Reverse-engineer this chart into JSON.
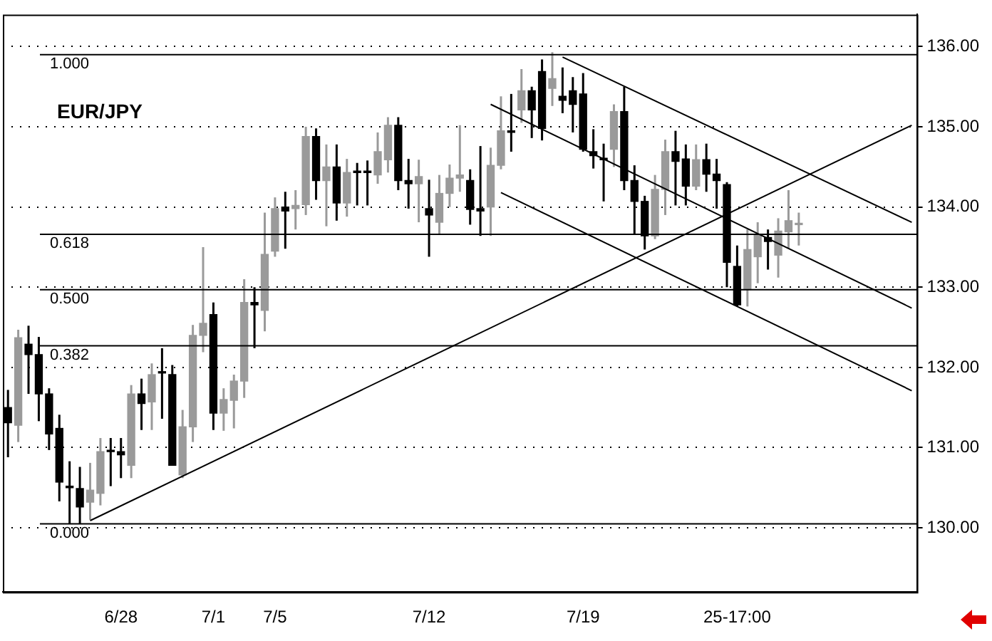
{
  "chart_data": {
    "type": "candlestick",
    "title": "EUR/JPY",
    "colors": [
      "#000000",
      "#9a9a9a",
      "#000000",
      "#000000",
      "#000000",
      "#000000",
      "#000000",
      "#000000",
      "#9a9a9a",
      "#9a9a9a",
      "#000000",
      "#000000",
      "#9a9a9a",
      "#000000",
      "#9a9a9a",
      "#000000",
      "#000000",
      "#9a9a9a",
      "#9a9a9a",
      "#9a9a9a",
      "#000000",
      "#9a9a9a",
      "#9a9a9a",
      "#9a9a9a",
      "#000000",
      "#9a9a9a",
      "#9a9a9a",
      "#000000",
      "#9a9a9a",
      "#9a9a9a",
      "#000000",
      "#9a9a9a",
      "#000000",
      "#9a9a9a",
      "#000000",
      "#000000",
      "#9a9a9a",
      "#9a9a9a",
      "#000000",
      "#000000",
      "#9a9a9a",
      "#000000",
      "#9a9a9a",
      "#9a9a9a",
      "#9a9a9a",
      "#000000",
      "#000000",
      "#9a9a9a",
      "#9a9a9a",
      "#000000",
      "#9a9a9a",
      "#000000",
      "#000000",
      "#9a9a9a",
      "#000000",
      "#000000",
      "#000000",
      "#000000",
      "#000000",
      "#9a9a9a",
      "#000000",
      "#000000",
      "#000000",
      "#9a9a9a",
      "#9a9a9a",
      "#000000",
      "#000000",
      "#9a9a9a",
      "#000000",
      "#000000",
      "#000000",
      "#000000",
      "#9a9a9a",
      "#9a9a9a",
      "#000000",
      "#9a9a9a",
      "#9a9a9a",
      "#9a9a9a",
      null,
      null,
      null,
      null,
      null,
      null,
      null,
      null,
      null,
      null,
      null
    ],
    "categories": [
      null,
      null,
      null,
      null,
      null,
      null,
      null,
      null,
      null,
      null,
      null,
      "6/28",
      null,
      null,
      null,
      null,
      null,
      null,
      null,
      null,
      "7/1",
      null,
      null,
      null,
      null,
      null,
      "7/5",
      null,
      null,
      null,
      null,
      null,
      null,
      null,
      null,
      null,
      null,
      null,
      null,
      null,
      null,
      "7/12",
      null,
      null,
      null,
      null,
      null,
      null,
      null,
      null,
      null,
      null,
      null,
      null,
      null,
      null,
      "7/19",
      null,
      null,
      null,
      null,
      null,
      null,
      null,
      null,
      null,
      null,
      null,
      null,
      null,
      null,
      "25-17:00",
      null,
      null,
      null,
      null,
      null,
      null,
      null,
      null,
      null,
      null,
      null,
      null,
      null,
      null,
      null,
      null,
      null
    ],
    "ohlc": [
      [
        131.5,
        131.72,
        130.88,
        131.31
      ],
      [
        131.28,
        132.47,
        131.07,
        132.37
      ],
      [
        132.29,
        132.52,
        131.67,
        132.16
      ],
      [
        132.16,
        132.38,
        131.33,
        131.67
      ],
      [
        131.67,
        131.74,
        130.97,
        131.17
      ],
      [
        131.24,
        131.41,
        130.33,
        130.57
      ],
      [
        130.52,
        130.83,
        130.05,
        130.5
      ],
      [
        130.49,
        130.76,
        130.05,
        130.26
      ],
      [
        130.32,
        130.81,
        130.1,
        130.47
      ],
      [
        130.43,
        131.12,
        130.28,
        130.95
      ],
      [
        130.95,
        131.12,
        130.52,
        130.95
      ],
      [
        130.95,
        131.12,
        130.62,
        130.91
      ],
      [
        130.78,
        131.78,
        130.62,
        131.67
      ],
      [
        131.67,
        131.86,
        131.22,
        131.55
      ],
      [
        131.57,
        132.05,
        131.22,
        131.91
      ],
      [
        131.93,
        132.24,
        131.36,
        131.93
      ],
      [
        131.91,
        132.03,
        130.78,
        130.78
      ],
      [
        130.66,
        131.47,
        130.62,
        131.26
      ],
      [
        131.26,
        132.53,
        131.07,
        132.4
      ],
      [
        132.4,
        133.5,
        132.19,
        132.55
      ],
      [
        132.66,
        132.81,
        131.22,
        131.43
      ],
      [
        131.43,
        131.74,
        131.21,
        131.6
      ],
      [
        131.59,
        131.91,
        131.24,
        131.83
      ],
      [
        131.83,
        133.1,
        131.62,
        132.81
      ],
      [
        132.81,
        133.0,
        132.24,
        132.78
      ],
      [
        132.71,
        133.93,
        132.45,
        133.41
      ],
      [
        133.45,
        134.12,
        133.38,
        133.98
      ],
      [
        134.0,
        134.19,
        133.48,
        133.95
      ],
      [
        133.98,
        134.21,
        133.72,
        134.02
      ],
      [
        134.03,
        135.0,
        133.9,
        134.88
      ],
      [
        134.88,
        134.98,
        134.09,
        134.33
      ],
      [
        134.33,
        134.78,
        133.76,
        134.5
      ],
      [
        134.5,
        134.78,
        133.83,
        134.05
      ],
      [
        134.05,
        134.6,
        133.88,
        134.43
      ],
      [
        134.43,
        134.55,
        134.02,
        134.43
      ],
      [
        134.43,
        134.58,
        134.02,
        134.43
      ],
      [
        134.4,
        134.93,
        134.29,
        134.69
      ],
      [
        134.59,
        135.12,
        134.43,
        135.02
      ],
      [
        135.02,
        135.12,
        134.21,
        134.33
      ],
      [
        134.33,
        134.6,
        133.98,
        134.29
      ],
      [
        134.29,
        134.59,
        133.81,
        134.38
      ],
      [
        133.98,
        134.34,
        133.38,
        133.9
      ],
      [
        133.81,
        134.4,
        133.66,
        134.17
      ],
      [
        134.17,
        134.53,
        134.0,
        134.36
      ],
      [
        134.36,
        135.02,
        134.19,
        134.4
      ],
      [
        134.33,
        134.47,
        133.78,
        133.97
      ],
      [
        133.98,
        134.76,
        133.64,
        133.95
      ],
      [
        134.0,
        134.74,
        133.64,
        134.52
      ],
      [
        134.52,
        135.38,
        134.47,
        134.95
      ],
      [
        134.95,
        135.41,
        134.69,
        134.93
      ],
      [
        135.21,
        135.72,
        135.05,
        135.45
      ],
      [
        135.45,
        135.5,
        134.86,
        135.21
      ],
      [
        135.69,
        135.84,
        134.83,
        134.98
      ],
      [
        135.48,
        135.93,
        135.26,
        135.6
      ],
      [
        135.38,
        135.74,
        135.17,
        135.33
      ],
      [
        135.45,
        135.62,
        134.93,
        135.28
      ],
      [
        135.41,
        135.67,
        134.69,
        134.72
      ],
      [
        134.69,
        134.97,
        134.48,
        134.64
      ],
      [
        134.59,
        134.79,
        134.07,
        134.59
      ],
      [
        134.72,
        135.28,
        134.5,
        135.19
      ],
      [
        135.19,
        135.5,
        134.21,
        134.33
      ],
      [
        134.33,
        134.52,
        133.66,
        134.07
      ],
      [
        134.07,
        134.14,
        133.47,
        133.64
      ],
      [
        133.64,
        134.4,
        133.6,
        134.22
      ],
      [
        134.22,
        134.84,
        133.9,
        134.69
      ],
      [
        134.69,
        134.95,
        134.02,
        134.57
      ],
      [
        134.6,
        134.78,
        134.02,
        134.26
      ],
      [
        134.26,
        134.78,
        134.21,
        134.59
      ],
      [
        134.59,
        134.79,
        134.19,
        134.41
      ],
      [
        134.41,
        134.6,
        133.98,
        134.33
      ],
      [
        134.28,
        134.31,
        133.0,
        133.31
      ],
      [
        133.26,
        133.52,
        132.76,
        132.78
      ],
      [
        132.97,
        133.72,
        132.76,
        133.47
      ],
      [
        133.38,
        133.81,
        133.05,
        133.66
      ],
      [
        133.62,
        133.72,
        133.22,
        133.57
      ],
      [
        133.4,
        133.86,
        133.12,
        133.7
      ],
      [
        133.69,
        134.21,
        133.48,
        133.83
      ],
      [
        133.78,
        133.93,
        133.52,
        133.79
      ],
      null,
      null,
      null,
      null,
      null,
      null,
      null,
      null,
      null,
      null,
      null
    ],
    "series": [
      {
        "type": "line",
        "color": "#000000",
        "values": [
          null,
          null,
          null,
          null,
          null,
          null,
          null,
          null,
          130.09,
          null,
          null,
          null,
          null,
          null,
          null,
          null,
          null,
          null,
          null,
          null,
          null,
          null,
          null,
          null,
          null,
          null,
          null,
          null,
          null,
          null,
          null,
          null,
          null,
          null,
          null,
          null,
          null,
          null,
          null,
          null,
          null,
          null,
          null,
          null,
          null,
          null,
          null,
          null,
          null,
          null,
          null,
          null,
          null,
          null,
          null,
          null,
          null,
          null,
          null,
          null,
          null,
          null,
          null,
          null,
          null,
          null,
          null,
          null,
          null,
          null,
          null,
          null,
          null,
          null,
          null,
          null,
          null,
          null,
          null,
          null,
          null,
          null,
          null,
          null,
          null,
          null,
          null,
          null,
          135.02
        ]
      },
      {
        "type": "line",
        "color": "#000000",
        "values": [
          null,
          null,
          null,
          null,
          null,
          null,
          null,
          null,
          null,
          null,
          null,
          null,
          null,
          null,
          null,
          null,
          null,
          null,
          null,
          null,
          null,
          null,
          null,
          null,
          null,
          null,
          null,
          null,
          null,
          null,
          null,
          null,
          null,
          null,
          null,
          null,
          null,
          null,
          null,
          null,
          null,
          null,
          null,
          null,
          null,
          null,
          null,
          null,
          null,
          null,
          null,
          null,
          null,
          null,
          135.87,
          null,
          null,
          null,
          null,
          null,
          null,
          null,
          null,
          null,
          null,
          null,
          null,
          null,
          null,
          null,
          null,
          null,
          null,
          null,
          null,
          null,
          null,
          null,
          null,
          null,
          null,
          null,
          null,
          null,
          null,
          null,
          null,
          null,
          133.81
        ]
      },
      {
        "type": "line",
        "color": "#000000",
        "values": [
          null,
          null,
          null,
          null,
          null,
          null,
          null,
          null,
          null,
          null,
          null,
          null,
          null,
          null,
          null,
          null,
          null,
          null,
          null,
          null,
          null,
          null,
          null,
          null,
          null,
          null,
          null,
          null,
          null,
          null,
          null,
          null,
          null,
          null,
          null,
          null,
          null,
          null,
          null,
          null,
          null,
          null,
          null,
          null,
          null,
          null,
          null,
          135.28,
          null,
          null,
          null,
          null,
          null,
          null,
          null,
          null,
          null,
          null,
          null,
          null,
          null,
          null,
          null,
          null,
          null,
          null,
          null,
          null,
          null,
          null,
          null,
          null,
          null,
          null,
          null,
          null,
          null,
          null,
          null,
          null,
          null,
          null,
          null,
          null,
          null,
          null,
          null,
          null,
          132.74
        ]
      },
      {
        "type": "line",
        "color": "#000000",
        "values": [
          null,
          null,
          null,
          null,
          null,
          null,
          null,
          null,
          null,
          null,
          null,
          null,
          null,
          null,
          null,
          null,
          null,
          null,
          null,
          null,
          null,
          null,
          null,
          null,
          null,
          null,
          null,
          null,
          null,
          null,
          null,
          null,
          null,
          null,
          null,
          null,
          null,
          null,
          null,
          null,
          null,
          null,
          null,
          null,
          null,
          null,
          null,
          null,
          134.18,
          null,
          null,
          null,
          null,
          null,
          null,
          null,
          null,
          null,
          null,
          null,
          null,
          null,
          null,
          null,
          null,
          null,
          null,
          null,
          null,
          null,
          null,
          null,
          null,
          null,
          null,
          null,
          null,
          null,
          null,
          null,
          null,
          null,
          null,
          null,
          null,
          null,
          null,
          null,
          131.71
        ]
      }
    ],
    "ylim": [
      129.2,
      136.4
    ],
    "yticks": [
      {
        "value": 130,
        "label": "130.00"
      },
      {
        "value": 131,
        "label": "131.00"
      },
      {
        "value": 132,
        "label": "132.00"
      },
      {
        "value": 133,
        "label": "133.00"
      },
      {
        "value": 134,
        "label": "134.00"
      },
      {
        "value": 135,
        "label": "135.00"
      },
      {
        "value": 136,
        "label": "136.00"
      }
    ],
    "grid": "y",
    "ref_lines": [
      {
        "axis": "y",
        "value": 135.9,
        "color": "#000000"
      },
      {
        "axis": "y",
        "value": 133.66,
        "color": "#000000"
      },
      {
        "axis": "y",
        "value": 132.97,
        "color": "#000000"
      },
      {
        "axis": "y",
        "value": 132.27,
        "color": "#000000"
      },
      {
        "axis": "y",
        "value": 130.05,
        "color": "#000000"
      }
    ],
    "annotations": [
      {
        "text": "1.000",
        "y": 135.9
      },
      {
        "text": "0.618",
        "y": 133.66
      },
      {
        "text": "0.500",
        "y": 132.97
      },
      {
        "text": "0.382",
        "y": 132.27
      },
      {
        "text": "0.000",
        "y": 130.05
      }
    ]
  }
}
